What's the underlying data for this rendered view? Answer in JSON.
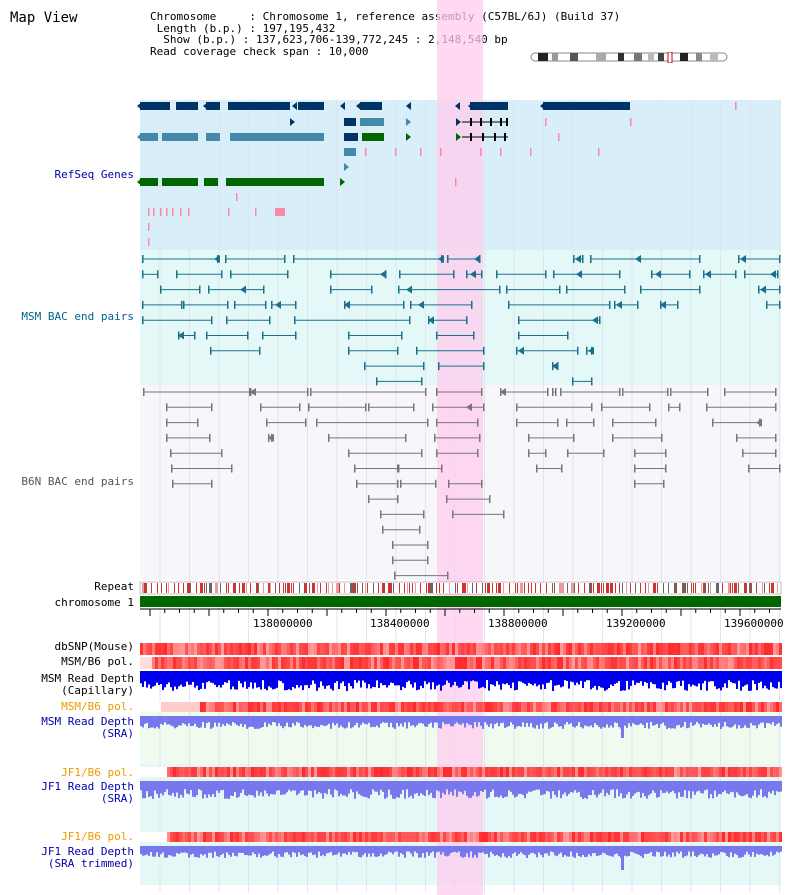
{
  "page_title": "Map View",
  "header": {
    "chromosome_line": "Chromosome     : Chromosome 1, reference assembly (C57BL/6J) (Build 37)",
    "length_line": " Length (b.p.) : 197,195,432",
    "show_line": "  Show (b.p.) : 137,623,706-139,772,245 : 2,148,540 bp",
    "coverage_line": "Read coverage check span : 10,000"
  },
  "tracks": {
    "refseq": {
      "label": "RefSeq Genes",
      "color": "#0000aa"
    },
    "msm_bac": {
      "label": "MSM BAC end pairs",
      "color": "#006688"
    },
    "b6n_bac": {
      "label": "B6N BAC end pairs",
      "color": "#555555"
    },
    "repeat": {
      "label": "Repeat"
    },
    "chromosome": {
      "label": "chromosome 1"
    },
    "dbsnp": {
      "label": "dbSNP(Mouse)"
    },
    "msm_b6_pol": {
      "label": "MSM/B6 pol."
    },
    "msm_depth_cap": {
      "label": "MSM Read Depth\n(Capillary)"
    },
    "msm_b6_pol_sra": {
      "label": "MSM/B6 pol."
    },
    "msm_depth_sra": {
      "label": "MSM Read Depth\n(SRA)"
    },
    "jf1_b6_pol": {
      "label": "JF1/B6 pol."
    },
    "jf1_depth_sra": {
      "label": "JF1 Read Depth\n(SRA)"
    },
    "jf1_b6_pol_trim": {
      "label": "JF1/B6 pol."
    },
    "jf1_depth_trim": {
      "label": "JF1 Read Depth\n(SRA trimmed)"
    }
  },
  "ruler": {
    "ticks": [
      "138000000",
      "138400000",
      "138800000",
      "139200000",
      "139600000"
    ]
  },
  "colors": {
    "highlight": "#ffccee",
    "refseq_bg": "#d8eef8",
    "msm_bg": "#e4f8f8",
    "b6n_bg": "#f6f6fb",
    "gene_navy": "#003366",
    "gene_teal": "#4488aa",
    "gene_green": "#006600",
    "depth_blue": "#0000ee",
    "depth_lavender": "#7777ee",
    "label_orange": "#ee9900",
    "label_blue": "#0000aa"
  }
}
